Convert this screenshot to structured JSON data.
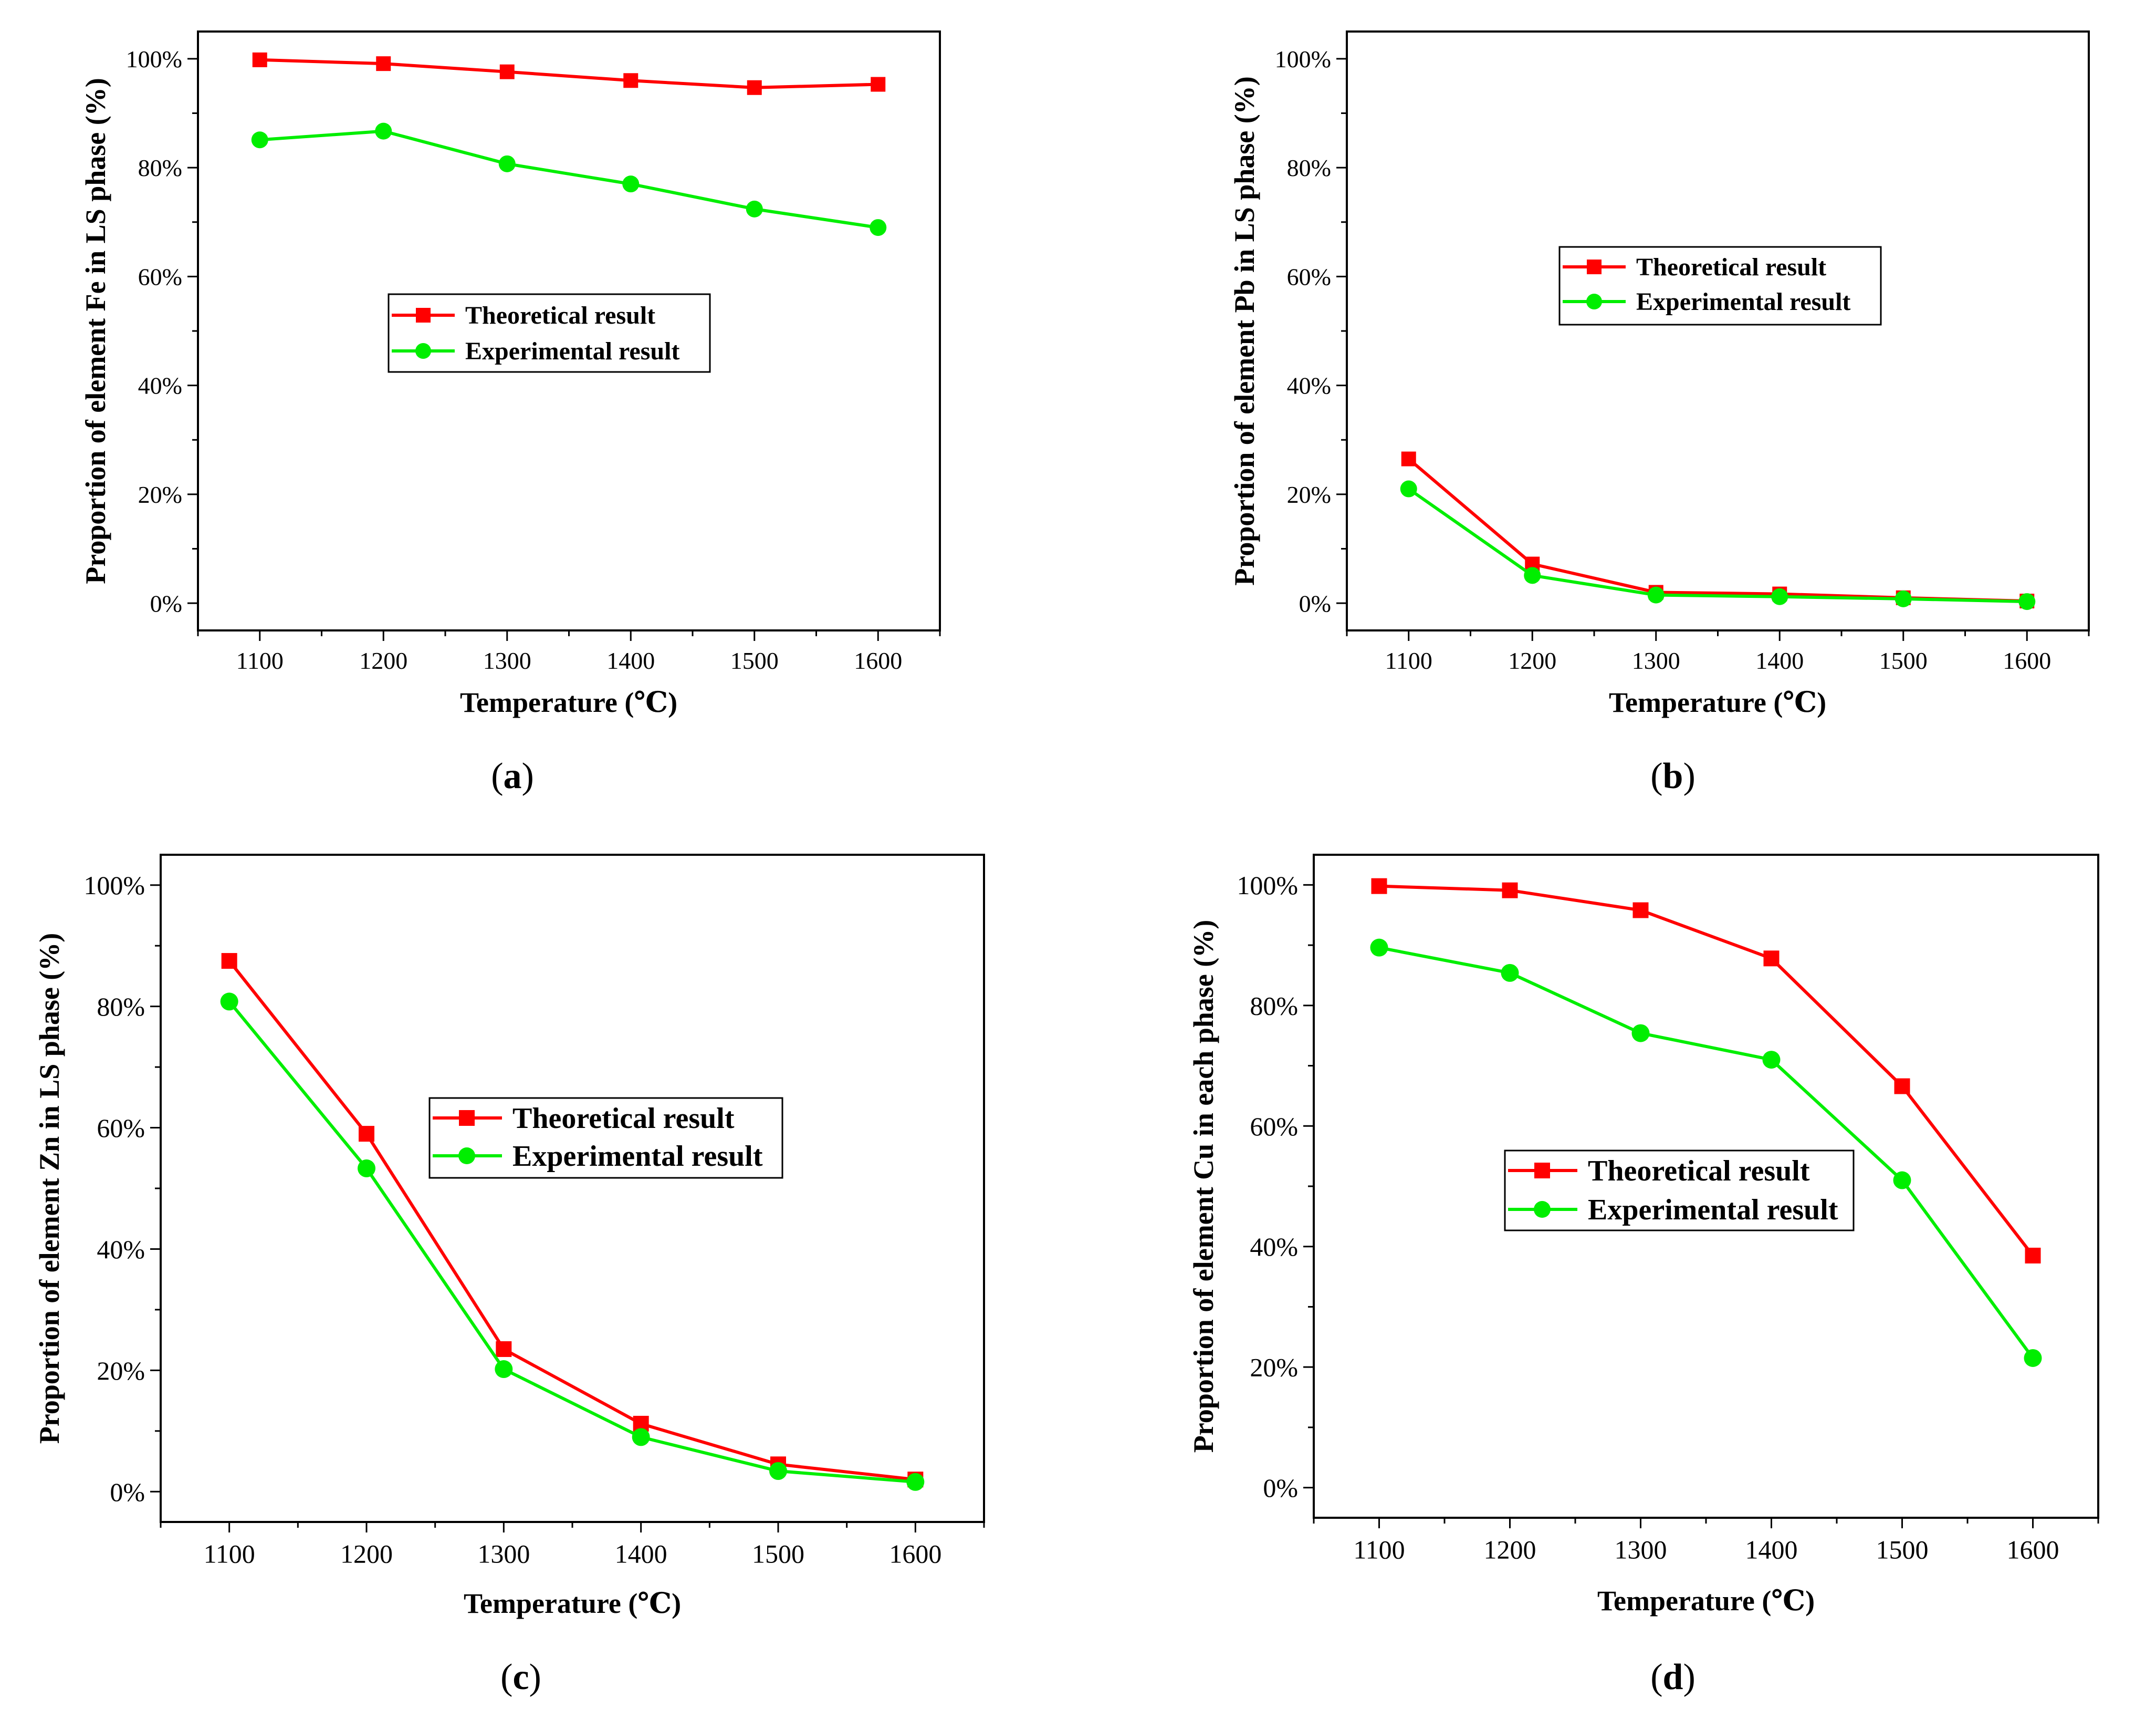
{
  "colors": {
    "theoretical": "#ff0000",
    "experimental": "#00ee00",
    "axis": "#000000"
  },
  "chart_data": [
    {
      "id": "a",
      "type": "line",
      "panel_label": "a",
      "xlabel": "Temperature (℃)",
      "ylabel": "Proportion of element Fe in LS phase (%)",
      "x": [
        1100,
        1200,
        1300,
        1400,
        1500,
        1600
      ],
      "x_tick_labels": [
        "1100",
        "1200",
        "1300",
        "1400",
        "1500",
        "1600"
      ],
      "xlim": [
        1050,
        1650
      ],
      "ylim": [
        -5,
        105
      ],
      "y_ticks": [
        0,
        20,
        40,
        60,
        80,
        100
      ],
      "y_tick_labels": [
        "0%",
        "20%",
        "40%",
        "60%",
        "80%",
        "100%"
      ],
      "legend_position": "center",
      "series": [
        {
          "name": "Theoretical result",
          "marker": "square",
          "values": [
            99.8,
            99.1,
            97.6,
            96.0,
            94.7,
            95.3
          ]
        },
        {
          "name": "Experimental result",
          "marker": "circle",
          "values": [
            85.1,
            86.7,
            80.7,
            77.0,
            72.4,
            69.0
          ]
        }
      ]
    },
    {
      "id": "b",
      "type": "line",
      "panel_label": "b",
      "xlabel": "Temperature (℃)",
      "ylabel": "Proportion of element Pb in LS phase (%)",
      "x": [
        1100,
        1200,
        1300,
        1400,
        1500,
        1600
      ],
      "x_tick_labels": [
        "1100",
        "1200",
        "1300",
        "1400",
        "1500",
        "1600"
      ],
      "xlim": [
        1050,
        1650
      ],
      "ylim": [
        -5,
        105
      ],
      "y_ticks": [
        0,
        20,
        40,
        60,
        80,
        100
      ],
      "y_tick_labels": [
        "0%",
        "20%",
        "40%",
        "60%",
        "80%",
        "100%"
      ],
      "legend_position": "center",
      "series": [
        {
          "name": "Theoretical result",
          "marker": "square",
          "values": [
            26.5,
            7.2,
            2.0,
            1.7,
            1.0,
            0.4
          ]
        },
        {
          "name": "Experimental result",
          "marker": "circle",
          "values": [
            21.0,
            5.1,
            1.5,
            1.2,
            0.8,
            0.3
          ]
        }
      ]
    },
    {
      "id": "c",
      "type": "line",
      "panel_label": "c",
      "xlabel": "Temperature (℃)",
      "ylabel": "Proportion of element Zn in LS phase (%)",
      "x": [
        1100,
        1200,
        1300,
        1400,
        1500,
        1600
      ],
      "x_tick_labels": [
        "1100",
        "1200",
        "1300",
        "1400",
        "1500",
        "1600"
      ],
      "xlim": [
        1050,
        1650
      ],
      "ylim": [
        -5,
        105
      ],
      "y_ticks": [
        0,
        20,
        40,
        60,
        80,
        100
      ],
      "y_tick_labels": [
        "0%",
        "20%",
        "40%",
        "60%",
        "80%",
        "100%"
      ],
      "legend_position": "center",
      "series": [
        {
          "name": "Theoretical result",
          "marker": "square",
          "values": [
            87.5,
            59.0,
            23.5,
            11.2,
            4.5,
            2.0
          ]
        },
        {
          "name": "Experimental result",
          "marker": "circle",
          "values": [
            80.8,
            53.3,
            20.2,
            9.0,
            3.4,
            1.6
          ]
        }
      ]
    },
    {
      "id": "d",
      "type": "line",
      "panel_label": "d",
      "xlabel": "Temperature (℃)",
      "ylabel": "Proportion of element Cu in each phase (%)",
      "x": [
        1100,
        1200,
        1300,
        1400,
        1500,
        1600
      ],
      "x_tick_labels": [
        "1100",
        "1200",
        "1300",
        "1400",
        "1500",
        "1600"
      ],
      "xlim": [
        1050,
        1650
      ],
      "ylim": [
        -5,
        105
      ],
      "y_ticks": [
        0,
        20,
        40,
        60,
        80,
        100
      ],
      "y_tick_labels": [
        "0%",
        "20%",
        "40%",
        "60%",
        "80%",
        "100%"
      ],
      "legend_position": "center-left",
      "series": [
        {
          "name": "Theoretical result",
          "marker": "square",
          "values": [
            99.8,
            99.1,
            95.8,
            87.8,
            66.6,
            38.5
          ]
        },
        {
          "name": "Experimental result",
          "marker": "circle",
          "values": [
            89.6,
            85.4,
            75.4,
            71.0,
            51.0,
            21.5
          ]
        }
      ]
    }
  ]
}
